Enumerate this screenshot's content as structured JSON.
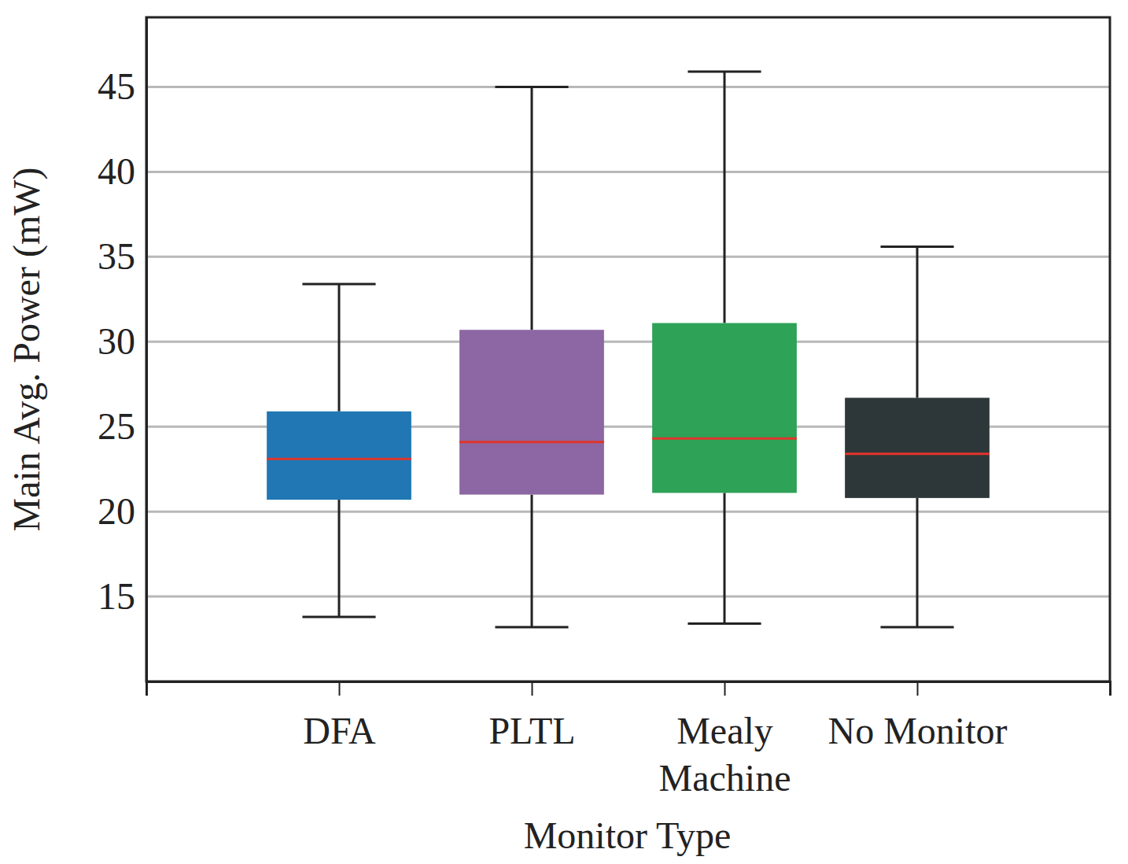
{
  "chart_data": {
    "type": "box",
    "x_label": "Monitor Type",
    "y_label": "Main Avg. Power (mW)",
    "categories": [
      "DFA",
      "PLTL",
      "Mealy\nMachine",
      "No Monitor"
    ],
    "whisker_low": [
      13.8,
      13.2,
      13.4,
      13.2
    ],
    "q1": [
      20.7,
      21.0,
      21.1,
      20.8
    ],
    "median": [
      23.1,
      24.1,
      24.3,
      23.4
    ],
    "q3": [
      25.9,
      30.7,
      31.1,
      26.7
    ],
    "whisker_high": [
      33.4,
      45.0,
      45.9,
      35.6
    ],
    "colors": [
      "#2077b4",
      "#8c67a3",
      "#2ea257",
      "#2d3739"
    ],
    "ylim": [
      10,
      49.1
    ],
    "yticks": [
      15,
      20,
      25,
      30,
      35,
      40,
      45
    ],
    "grid": true
  }
}
